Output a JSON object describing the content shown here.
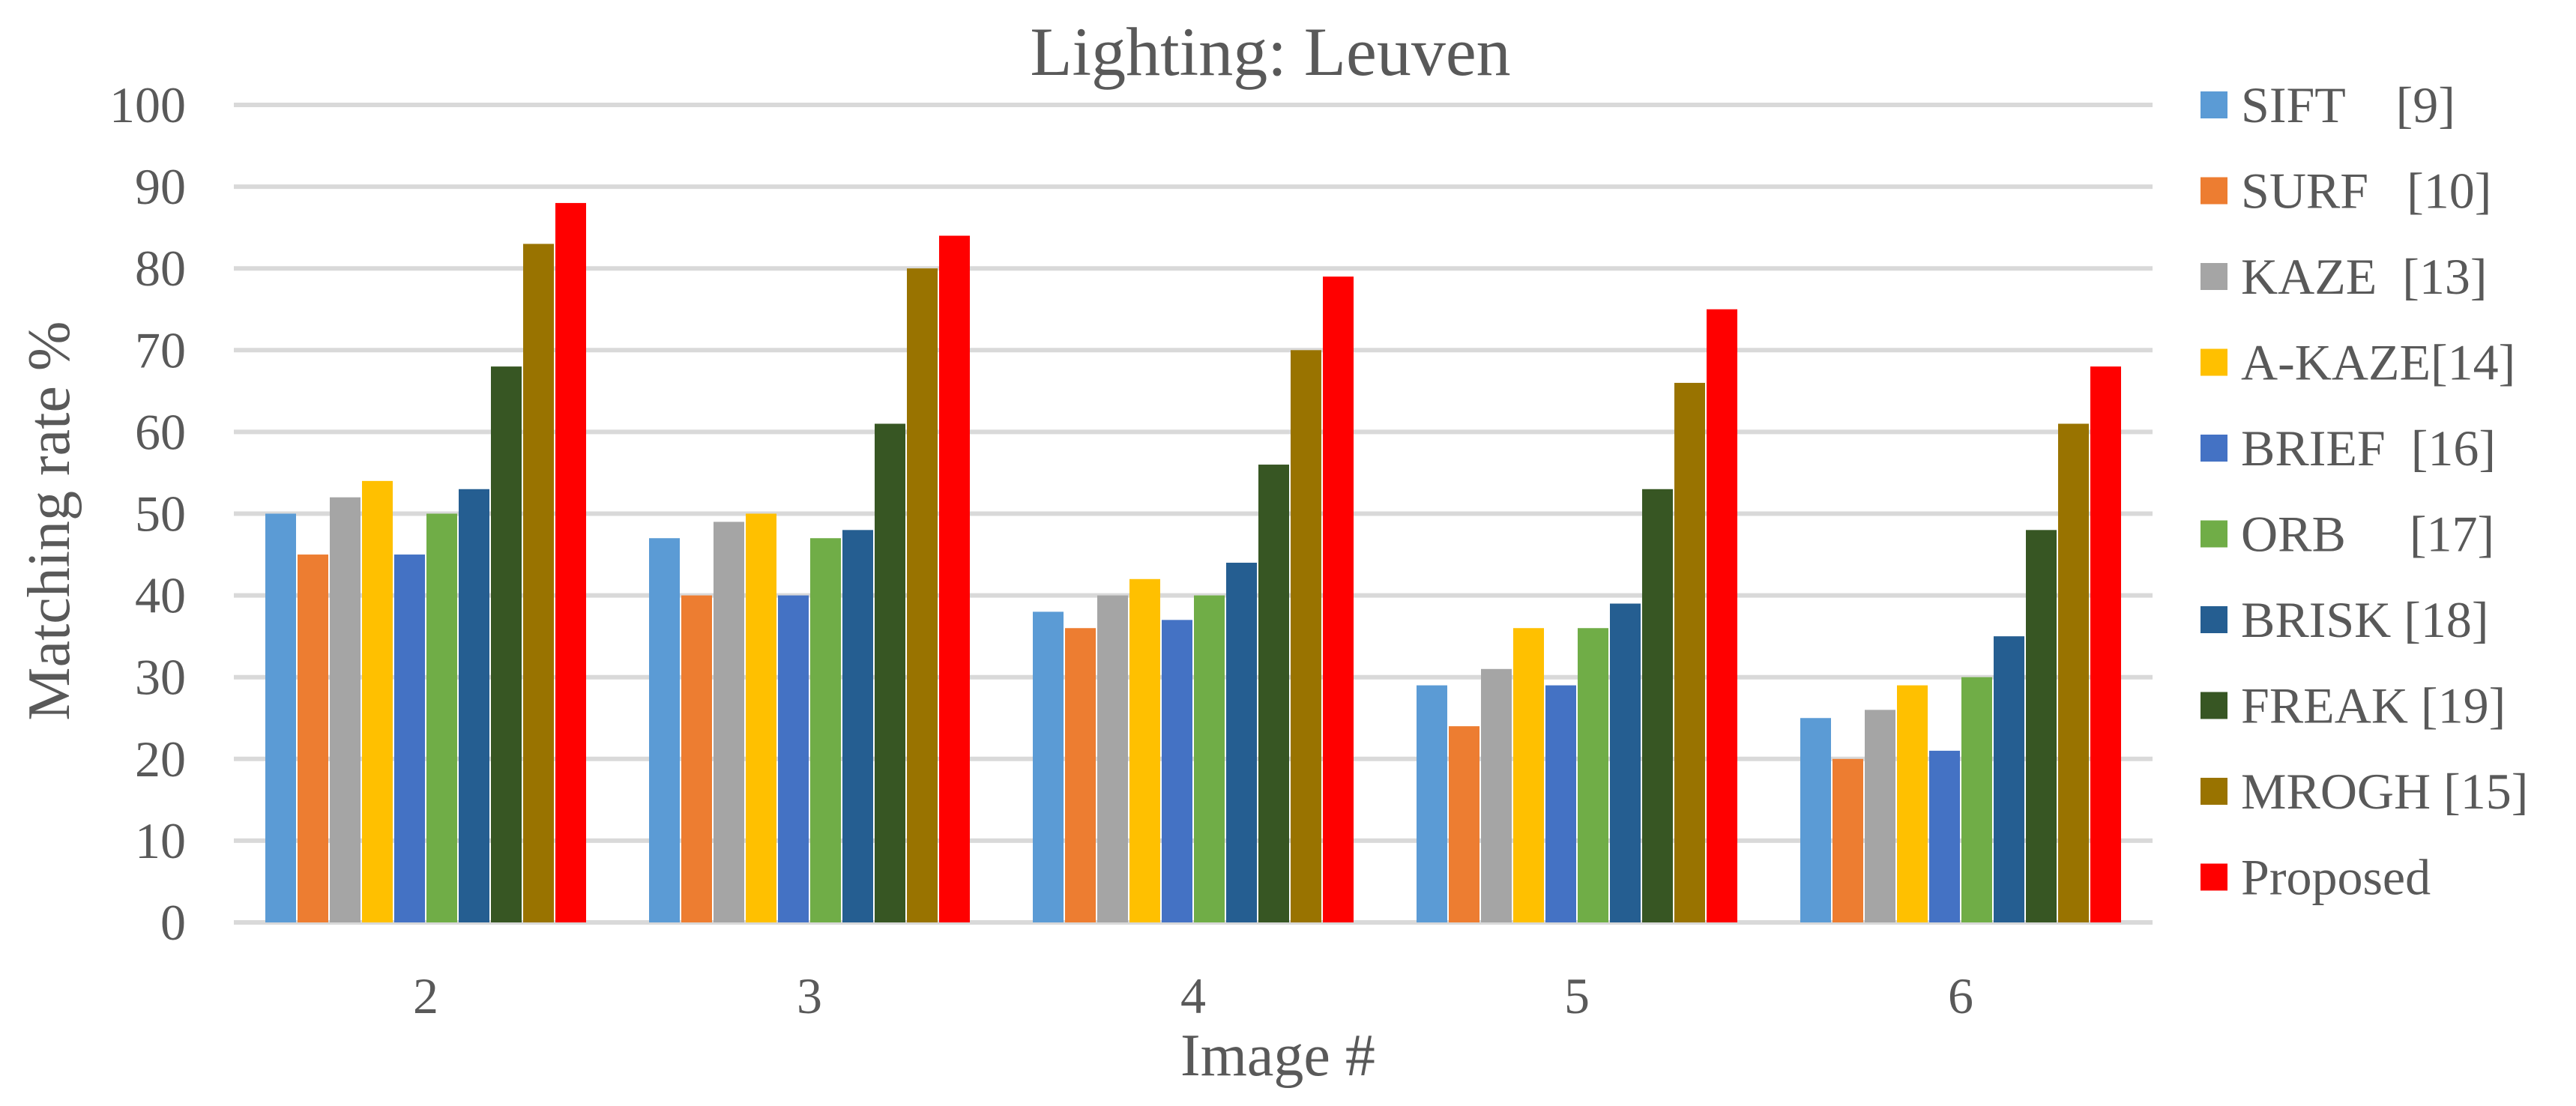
{
  "chart_data": {
    "type": "bar",
    "title": "Lighting: Leuven",
    "xlabel": "Image #",
    "ylabel": "Matching rate %",
    "ylim": [
      0,
      100
    ],
    "yticks": [
      0,
      10,
      20,
      30,
      40,
      50,
      60,
      70,
      80,
      90,
      100
    ],
    "grid": true,
    "legend_position": "right",
    "categories": [
      "2",
      "3",
      "4",
      "5",
      "6"
    ],
    "series": [
      {
        "name": "SIFT    [9]",
        "color": "#5b9bd5",
        "values": [
          50,
          47,
          38,
          29,
          25
        ]
      },
      {
        "name": "SURF   [10]",
        "color": "#ed7d31",
        "values": [
          45,
          40,
          36,
          24,
          20
        ]
      },
      {
        "name": "KAZE  [13]",
        "color": "#a5a5a5",
        "values": [
          52,
          49,
          40,
          31,
          26
        ]
      },
      {
        "name": "A-KAZE[14]",
        "color": "#ffc000",
        "values": [
          54,
          50,
          42,
          36,
          29
        ]
      },
      {
        "name": "BRIEF  [16]",
        "color": "#4472c4",
        "values": [
          45,
          40,
          37,
          29,
          21
        ]
      },
      {
        "name": "ORB     [17]",
        "color": "#70ad47",
        "values": [
          50,
          47,
          40,
          36,
          30
        ]
      },
      {
        "name": "BRISK [18]",
        "color": "#255e91",
        "values": [
          53,
          48,
          44,
          39,
          35
        ]
      },
      {
        "name": "FREAK [19]",
        "color": "#375623",
        "values": [
          68,
          61,
          56,
          53,
          48
        ]
      },
      {
        "name": "MROGH [15]",
        "color": "#997300",
        "values": [
          83,
          80,
          70,
          66,
          61
        ]
      },
      {
        "name": "Proposed",
        "color": "#ff0000",
        "values": [
          88,
          84,
          79,
          75,
          68
        ]
      }
    ]
  }
}
